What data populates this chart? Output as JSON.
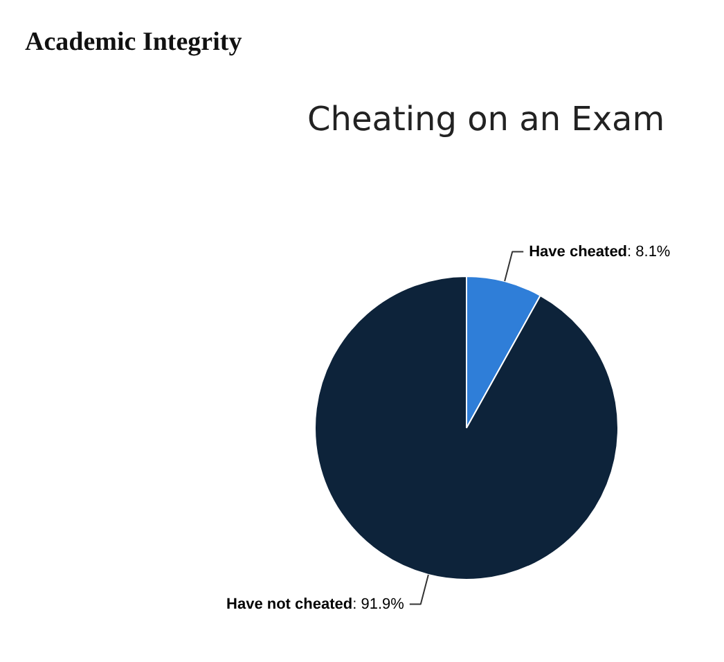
{
  "chart_data": {
    "type": "pie",
    "title": "Academic Integrity",
    "subtitle": "Cheating on an Exam",
    "categories": [
      "Have cheated",
      "Have not cheated"
    ],
    "values": [
      8.1,
      91.9
    ],
    "value_labels": [
      ": 8.1%",
      ": 91.9%"
    ],
    "colors": [
      "#2f7ed8",
      "#0d233a"
    ],
    "legend": false
  }
}
